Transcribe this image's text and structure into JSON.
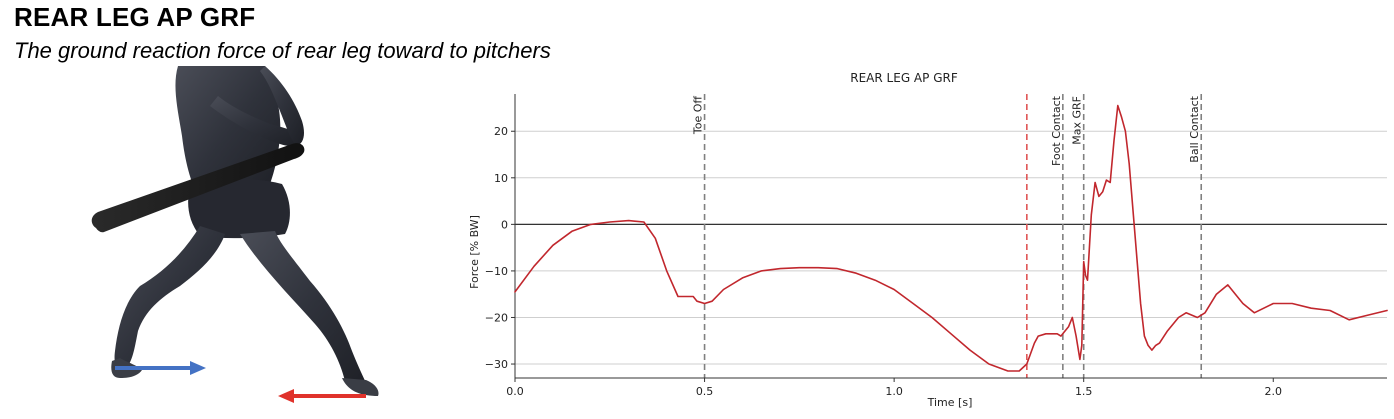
{
  "header": {
    "title": "REAR LEG AP GRF",
    "subtitle": "The ground reaction force of rear leg toward to pitchers"
  },
  "figure": {
    "description_icon": "batter-icon",
    "arrow_forward_color": "#4472c4",
    "arrow_backward_color": "#e0322b"
  },
  "chart_data": {
    "type": "line",
    "title": "REAR LEG AP GRF",
    "xlabel": "Time [s]",
    "ylabel": "Force [% BW]",
    "xlim": [
      0.0,
      2.3
    ],
    "ylim": [
      -33,
      28
    ],
    "xticks": [
      0.0,
      0.5,
      1.0,
      1.5,
      2.0
    ],
    "xtick_labels": [
      "0.0",
      "0.5",
      "1.0",
      "1.5",
      "2.0"
    ],
    "yticks": [
      -30,
      -20,
      -10,
      0,
      10,
      20
    ],
    "ytick_labels": [
      "−30",
      "−20",
      "−10",
      "0",
      "10",
      "20"
    ],
    "grid": "horizontal",
    "zero_line": true,
    "line_color": "#c1272d",
    "series": [
      {
        "x": [
          0.0,
          0.05,
          0.1,
          0.15,
          0.2,
          0.25,
          0.3,
          0.34,
          0.37,
          0.4,
          0.43,
          0.45,
          0.47,
          0.48,
          0.5,
          0.52,
          0.55,
          0.6,
          0.65,
          0.7,
          0.75,
          0.8,
          0.85,
          0.9,
          0.95,
          1.0,
          1.05,
          1.1,
          1.15,
          1.2,
          1.25,
          1.3,
          1.33,
          1.35,
          1.37,
          1.38,
          1.4,
          1.41,
          1.43,
          1.44,
          1.45,
          1.46,
          1.47,
          1.48,
          1.49,
          1.495,
          1.5,
          1.505,
          1.51,
          1.52,
          1.53,
          1.54,
          1.55,
          1.56,
          1.57,
          1.58,
          1.59,
          1.6,
          1.61,
          1.62,
          1.63,
          1.64,
          1.65,
          1.66,
          1.67,
          1.68,
          1.69,
          1.7,
          1.72,
          1.75,
          1.77,
          1.8,
          1.82,
          1.85,
          1.88,
          1.92,
          1.95,
          2.0,
          2.05,
          2.1,
          2.15,
          2.2,
          2.25,
          2.3
        ],
        "y": [
          -14.5,
          -9,
          -4.5,
          -1.5,
          0,
          0.5,
          0.8,
          0.5,
          -3,
          -10,
          -15.5,
          -15.5,
          -15.5,
          -16.5,
          -17,
          -16.5,
          -14,
          -11.5,
          -10,
          -9.5,
          -9.3,
          -9.3,
          -9.5,
          -10.5,
          -12,
          -14,
          -17,
          -20,
          -23.5,
          -27,
          -30,
          -31.5,
          -31.5,
          -30,
          -25.5,
          -24,
          -23.5,
          -23.5,
          -23.5,
          -24,
          -23,
          -22,
          -20,
          -24,
          -29,
          -26,
          -8,
          -11,
          -12,
          2,
          9,
          6,
          7,
          9.5,
          9,
          18,
          25.5,
          23,
          20,
          13,
          3,
          -7,
          -17,
          -24,
          -26,
          -27,
          -26,
          -25.5,
          -23,
          -20,
          -19,
          -20,
          -19,
          -15,
          -13,
          -17,
          -19,
          -17,
          -17,
          -18,
          -18.5,
          -20.5,
          -19.5,
          -18.5
        ]
      }
    ],
    "events": [
      {
        "x": 0.5,
        "label": "Toe Off",
        "color": "#808080",
        "style": "dashed"
      },
      {
        "x": 1.35,
        "label": "",
        "color": "#e05555",
        "style": "dashed"
      },
      {
        "x": 1.445,
        "label": "Foot Contact",
        "color": "#808080",
        "style": "dashed"
      },
      {
        "x": 1.5,
        "label": "Max GRF",
        "color": "#808080",
        "style": "dashed"
      },
      {
        "x": 1.81,
        "label": "Ball Contact",
        "color": "#808080",
        "style": "dashed"
      }
    ]
  }
}
